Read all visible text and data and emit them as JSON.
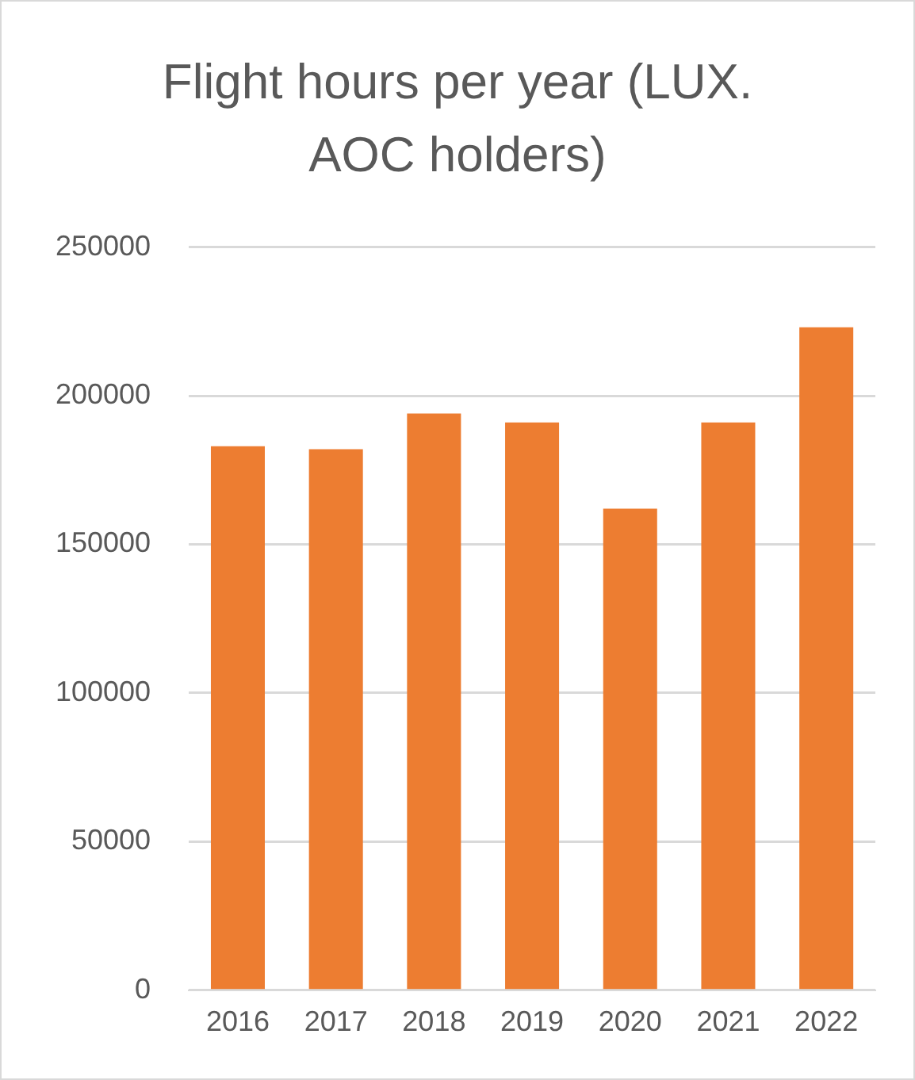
{
  "chart_data": {
    "type": "bar",
    "title": "Flight hours per year (LUX. AOC holders)",
    "categories": [
      "2016",
      "2017",
      "2018",
      "2019",
      "2020",
      "2021",
      "2022"
    ],
    "values": [
      183000,
      182000,
      194000,
      191000,
      162000,
      191000,
      223000
    ],
    "color": "#ed7d31",
    "ylim": [
      0,
      250000
    ],
    "yticks": [
      0,
      50000,
      100000,
      150000,
      200000,
      250000
    ],
    "grid": "y",
    "legend": false
  }
}
